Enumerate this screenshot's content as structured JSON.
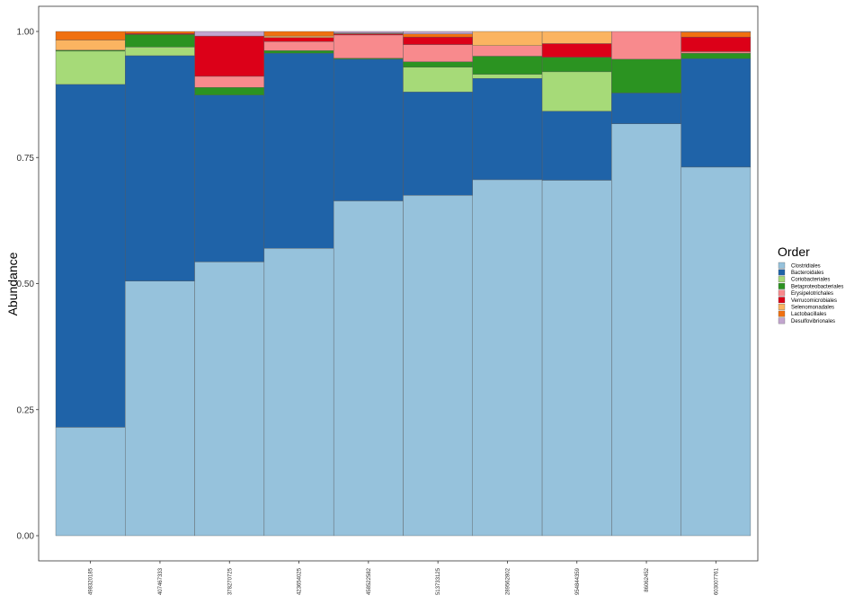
{
  "chart_data": {
    "type": "bar",
    "stacked": true,
    "ylabel": "Abundance",
    "xlabel": "",
    "ylim": [
      0,
      1
    ],
    "yticks": [
      "0.00",
      "0.25",
      "0.50",
      "0.75",
      "1.00"
    ],
    "ytick_values": [
      0,
      0.25,
      0.5,
      0.75,
      1.0
    ],
    "categories": [
      "498320185",
      "407467333",
      "378270725",
      "423654025",
      "458522582",
      "513733125",
      "289562802",
      "954844359",
      "86062452",
      "603007761"
    ],
    "legend": {
      "title": "Order",
      "placement": "right"
    },
    "series": [
      {
        "name": "Clostridiales",
        "color": "#96C2DC",
        "values": [
          0.215,
          0.505,
          0.543,
          0.57,
          0.664,
          0.675,
          0.706,
          0.705,
          0.817,
          0.731
        ]
      },
      {
        "name": "Bacteroidales",
        "color": "#1F63A8",
        "values": [
          0.68,
          0.447,
          0.331,
          0.387,
          0.281,
          0.205,
          0.201,
          0.137,
          0.061,
          0.215
        ]
      },
      {
        "name": "Coriobacteriales",
        "color": "#A6DA78",
        "values": [
          0.066,
          0.017,
          0.0,
          0.0,
          0.0,
          0.049,
          0.008,
          0.078,
          0.0,
          0.0
        ]
      },
      {
        "name": "Betaproteobacteriales",
        "color": "#2B9321",
        "values": [
          0.002,
          0.025,
          0.015,
          0.005,
          0.002,
          0.011,
          0.036,
          0.029,
          0.067,
          0.011
        ]
      },
      {
        "name": "Erysipelotrichales",
        "color": "#F88A8D",
        "values": [
          0.0,
          0.0,
          0.022,
          0.018,
          0.046,
          0.034,
          0.021,
          0.0,
          0.055,
          0.003
        ]
      },
      {
        "name": "Verrucomicrobiales",
        "color": "#DC0018",
        "values": [
          0.0,
          0.002,
          0.08,
          0.008,
          0.002,
          0.015,
          0.0,
          0.027,
          0.0,
          0.029
        ]
      },
      {
        "name": "Selenomonadales",
        "color": "#FBB461",
        "values": [
          0.02,
          0.0,
          0.0,
          0.003,
          0.001,
          0.0,
          0.028,
          0.024,
          0.0,
          0.0
        ]
      },
      {
        "name": "Lactobacillales",
        "color": "#F07010",
        "values": [
          0.017,
          0.004,
          0.0,
          0.009,
          0.001,
          0.006,
          0.0,
          0.0,
          0.0,
          0.01
        ]
      },
      {
        "name": "Desulfovibrionales",
        "color": "#C2A5CF",
        "values": [
          0.0,
          0.0,
          0.009,
          0.0,
          0.003,
          0.005,
          0.0,
          0.0,
          0.0,
          0.001
        ]
      }
    ]
  }
}
